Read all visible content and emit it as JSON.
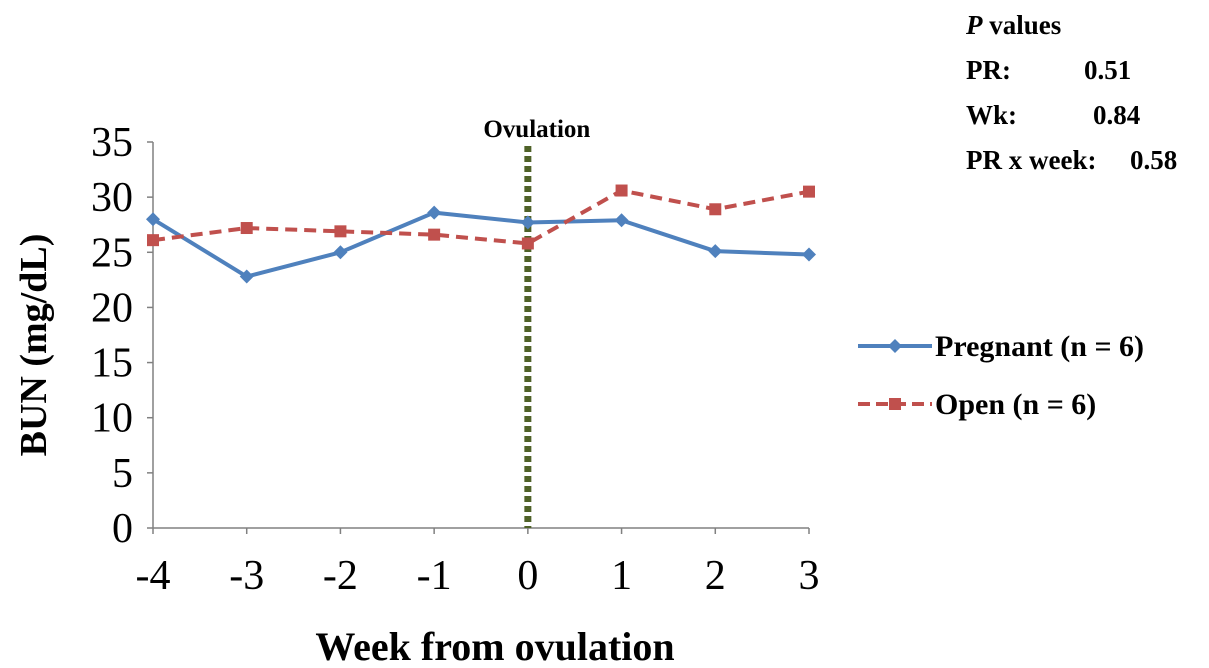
{
  "chart_data": {
    "type": "line",
    "x": [
      -4,
      -3,
      -2,
      -1,
      0,
      1,
      2,
      3
    ],
    "xlabel": "Week from ovulation",
    "ylabel": "BUN (mg/dL)",
    "ylim": [
      0,
      35
    ],
    "yticks": [
      0,
      5,
      10,
      15,
      20,
      25,
      30,
      35
    ],
    "grid": false,
    "legend_position": "right",
    "series": [
      {
        "name": "Pregnant (n = 6)",
        "values": [
          28.0,
          22.8,
          25.0,
          28.6,
          27.7,
          27.9,
          25.1,
          24.8
        ],
        "color": "#4F81BD",
        "line": "solid",
        "marker": "diamond"
      },
      {
        "name": "Open (n = 6)",
        "values": [
          26.1,
          27.2,
          26.9,
          26.6,
          25.8,
          30.6,
          28.9,
          30.5
        ],
        "color": "#C0504D",
        "line": "dashed",
        "marker": "square"
      }
    ],
    "annotations": [
      {
        "text": "Ovulation",
        "x": 0,
        "color": "#4F6228",
        "style": "dotted vertical line"
      }
    ]
  },
  "pvalues": {
    "title_italic": "P",
    "title_rest": " values",
    "rows": [
      {
        "label": "PR:",
        "value": "0.51"
      },
      {
        "label": "Wk:",
        "value": "0.84"
      },
      {
        "label": "PR x week:",
        "value": "0.58"
      }
    ]
  }
}
